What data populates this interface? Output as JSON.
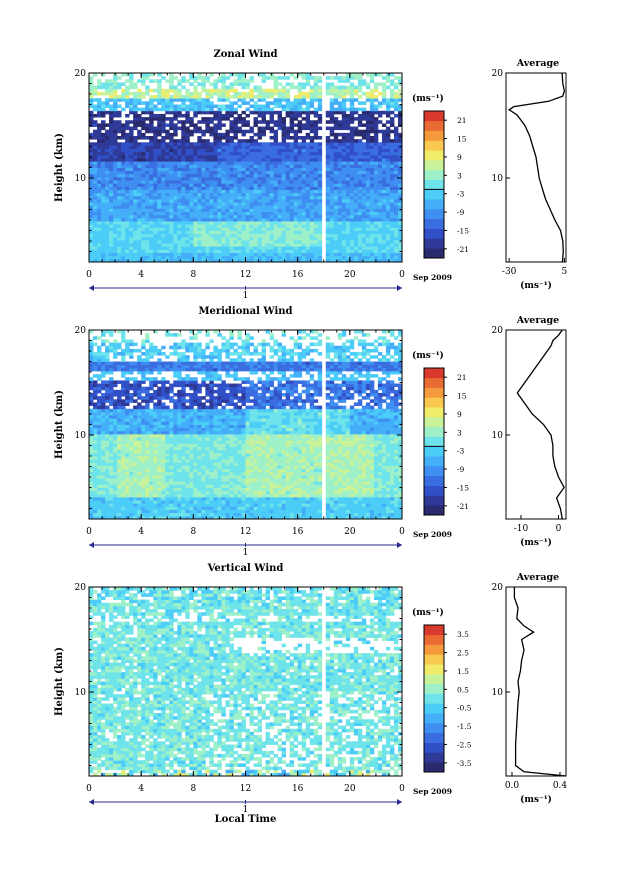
{
  "colors": {
    "palette": [
      "#2a2a6e",
      "#2f3a98",
      "#3150c8",
      "#3a6ee0",
      "#3f8ef2",
      "#45aef8",
      "#4ccdf8",
      "#6fe3ea",
      "#9ef0c8",
      "#c8f29a",
      "#f0ec6a",
      "#f8c850",
      "#f49a3c",
      "#ea6a34",
      "#d83a2e"
    ],
    "background": "#ffffff",
    "axis": "#000000"
  },
  "chart_data": [
    {
      "type": "heatmap",
      "title": "Zonal Wind",
      "ylabel": "Height (km)",
      "ylim": [
        2,
        20
      ],
      "yticks": [
        "10",
        "20"
      ],
      "xticks": [
        "0",
        "4",
        "8",
        "12",
        "16",
        "20",
        "0"
      ],
      "xlim": [
        0,
        24
      ],
      "day_labels": [
        "1"
      ],
      "date_label": "Sep 2009",
      "colorbar": {
        "unit": "(ms⁻¹)",
        "labels": [
          "21",
          "15",
          "9",
          "3",
          "-3",
          "-9",
          "-15",
          "-21"
        ],
        "range": [
          -24,
          24
        ]
      },
      "average": {
        "title": "Average",
        "xlabel": "(ms⁻¹)",
        "xticks": [
          "-30",
          "5"
        ],
        "yticks": [
          "10",
          "20"
        ],
        "xlim": [
          -32,
          6
        ],
        "profile": [
          [
            3.7,
            2
          ],
          [
            4.3,
            3
          ],
          [
            4,
            4
          ],
          [
            2.5,
            5
          ],
          [
            -1,
            6
          ],
          [
            -4,
            7
          ],
          [
            -7,
            8
          ],
          [
            -9,
            9
          ],
          [
            -11,
            10
          ],
          [
            -12,
            11
          ],
          [
            -13,
            12
          ],
          [
            -15,
            13
          ],
          [
            -17,
            14
          ],
          [
            -20,
            15
          ],
          [
            -25,
            16
          ],
          [
            -30,
            16.5
          ],
          [
            -27,
            16.8
          ],
          [
            -5,
            17.3
          ],
          [
            4,
            17.8
          ],
          [
            5,
            18.3
          ],
          [
            4,
            19
          ],
          [
            3.5,
            20
          ]
        ]
      },
      "panel": "zonal"
    },
    {
      "type": "heatmap",
      "title": "Meridional Wind",
      "ylabel": "Height (km)",
      "ylim": [
        2,
        20
      ],
      "yticks": [
        "10",
        "20"
      ],
      "xticks": [
        "0",
        "4",
        "8",
        "12",
        "16",
        "20",
        "0"
      ],
      "xlim": [
        0,
        24
      ],
      "day_labels": [
        "1"
      ],
      "date_label": "Sep 2009",
      "colorbar": {
        "unit": "(ms⁻¹)",
        "labels": [
          "21",
          "15",
          "9",
          "3",
          "-3",
          "-9",
          "-15",
          "-21"
        ],
        "range": [
          -24,
          24
        ]
      },
      "average": {
        "title": "Average",
        "xlabel": "(ms⁻¹)",
        "xticks": [
          "-10",
          "0"
        ],
        "yticks": [
          "10",
          "20"
        ],
        "xlim": [
          -14,
          2
        ],
        "profile": [
          [
            1,
            2
          ],
          [
            0.5,
            3
          ],
          [
            -0.5,
            4
          ],
          [
            1.5,
            5
          ],
          [
            0,
            6
          ],
          [
            -1,
            7
          ],
          [
            -1.5,
            8
          ],
          [
            -1.5,
            9
          ],
          [
            -2,
            10
          ],
          [
            -4,
            11
          ],
          [
            -7,
            12
          ],
          [
            -9,
            13
          ],
          [
            -11,
            14
          ],
          [
            -9,
            15
          ],
          [
            -7,
            16
          ],
          [
            -5,
            17
          ],
          [
            -3,
            18
          ],
          [
            -2,
            18.5
          ],
          [
            -1.5,
            19
          ],
          [
            0,
            19.5
          ],
          [
            1,
            20
          ]
        ]
      },
      "panel": "meridional"
    },
    {
      "type": "heatmap",
      "title": "Vertical Wind",
      "ylabel": "Height (km)",
      "xlabel": "Local Time",
      "ylim": [
        2,
        20
      ],
      "yticks": [
        "10",
        "20"
      ],
      "xticks": [
        "0",
        "4",
        "8",
        "12",
        "16",
        "20",
        "0"
      ],
      "xlim": [
        0,
        24
      ],
      "day_labels": [
        "1"
      ],
      "date_label": "Sep 2009",
      "colorbar": {
        "unit": "(ms⁻¹)",
        "labels": [
          "3.5",
          "2.5",
          "1.5",
          "0.5",
          "-0.5",
          "-1.5",
          "-2.5",
          "-3.5"
        ],
        "range": [
          -4,
          4
        ]
      },
      "average": {
        "title": "Average",
        "xlabel": "(ms⁻¹)",
        "xticks": [
          "0.0",
          "0.4"
        ],
        "yticks": [
          "10",
          "20"
        ],
        "xlim": [
          -0.05,
          0.45
        ],
        "profile": [
          [
            0.45,
            2
          ],
          [
            0.1,
            2.4
          ],
          [
            0.03,
            3
          ],
          [
            0.03,
            5
          ],
          [
            0.04,
            7
          ],
          [
            0.05,
            9
          ],
          [
            0.06,
            10
          ],
          [
            0.05,
            11
          ],
          [
            0.07,
            12
          ],
          [
            0.08,
            13
          ],
          [
            0.1,
            14
          ],
          [
            0.08,
            15
          ],
          [
            0.18,
            15.7
          ],
          [
            0.1,
            16.3
          ],
          [
            0.04,
            17
          ],
          [
            0.05,
            18
          ],
          [
            0.02,
            19
          ],
          [
            0.02,
            20
          ]
        ]
      },
      "panel": "vertical"
    }
  ]
}
